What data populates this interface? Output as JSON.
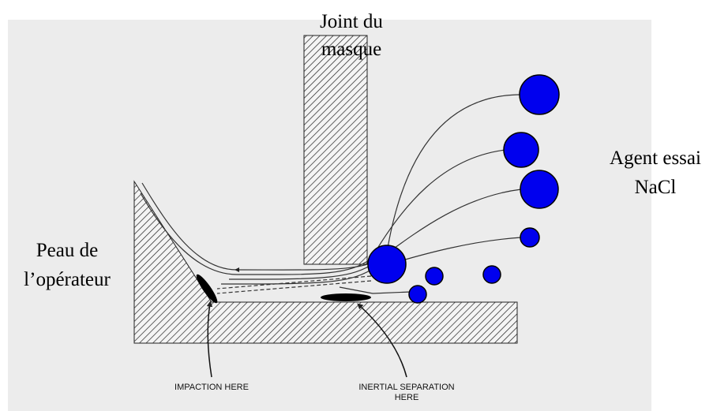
{
  "title": {
    "line1": "Joint du",
    "line2": "masque"
  },
  "agent": {
    "line1": "Agent essai",
    "line2": "NaCl"
  },
  "skin": {
    "line1": "Peau de",
    "line2": "l’opérateur"
  },
  "impaction": "IMPACTION HERE",
  "inertial": {
    "line1": "INERTIAL SEPARATION",
    "line2": "HERE"
  }
}
